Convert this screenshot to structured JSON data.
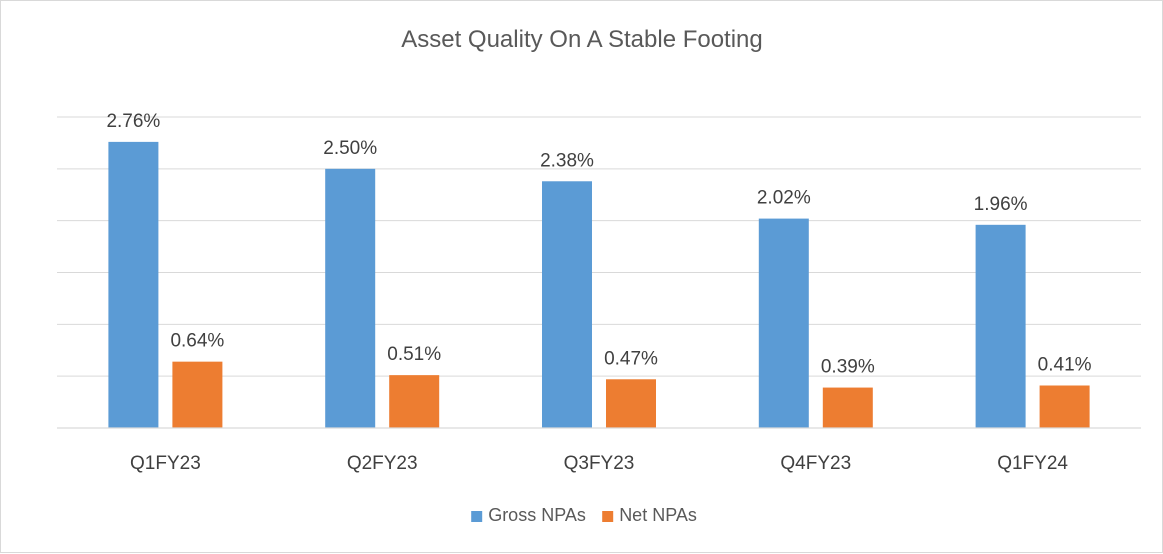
{
  "chart_data": {
    "type": "bar",
    "title": "Asset Quality On A Stable Footing",
    "categories": [
      "Q1FY23",
      "Q2FY23",
      "Q3FY23",
      "Q4FY23",
      "Q1FY24"
    ],
    "series": [
      {
        "name": "Gross NPAs",
        "values": [
          2.76,
          2.5,
          2.38,
          2.02,
          1.96
        ],
        "labels": [
          "2.76%",
          "2.50%",
          "2.38%",
          "2.02%",
          "1.96%"
        ],
        "color": "#5b9bd5"
      },
      {
        "name": "Net NPAs",
        "values": [
          0.64,
          0.51,
          0.47,
          0.39,
          0.41
        ],
        "labels": [
          "0.64%",
          "0.51%",
          "0.47%",
          "0.39%",
          "0.41%"
        ],
        "color": "#ed7d31"
      }
    ],
    "ylim": [
      0,
      3.0
    ],
    "y_gridline_step": 0.5,
    "y_tick_labels_shown": false,
    "grid": true,
    "legend_position": "bottom"
  }
}
